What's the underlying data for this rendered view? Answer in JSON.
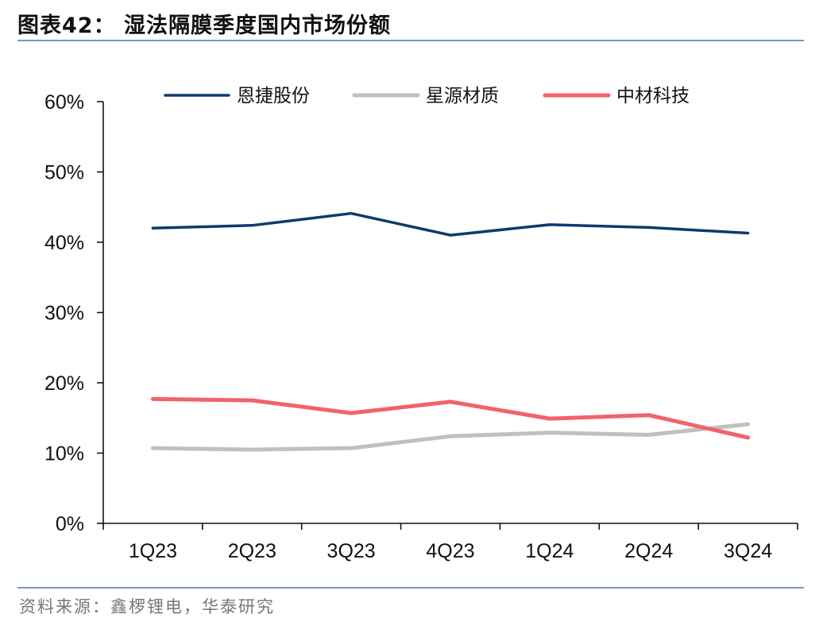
{
  "figure": {
    "title": "图表42： 湿法隔膜季度国内市场份额",
    "source": "资料来源：鑫椤锂电，华泰研究"
  },
  "chart_data": {
    "type": "line",
    "title": "",
    "xlabel": "",
    "ylabel": "",
    "categories": [
      "1Q23",
      "2Q23",
      "3Q23",
      "4Q23",
      "1Q24",
      "2Q24",
      "3Q24"
    ],
    "ylim": [
      0,
      60
    ],
    "yticks": [
      "0%",
      "10%",
      "20%",
      "30%",
      "40%",
      "50%",
      "60%"
    ],
    "grid": false,
    "legend_position": "top",
    "series": [
      {
        "name": "恩捷股份",
        "color": "#0d3a6e",
        "values": [
          42.0,
          42.4,
          44.1,
          41.0,
          42.5,
          42.1,
          41.3
        ]
      },
      {
        "name": "星源材质",
        "color": "#c0c0c0",
        "values": [
          10.7,
          10.5,
          10.7,
          12.4,
          12.9,
          12.6,
          14.1
        ]
      },
      {
        "name": "中材科技",
        "color": "#f2626a",
        "values": [
          17.7,
          17.5,
          15.7,
          17.3,
          14.9,
          15.4,
          12.2
        ]
      }
    ]
  }
}
